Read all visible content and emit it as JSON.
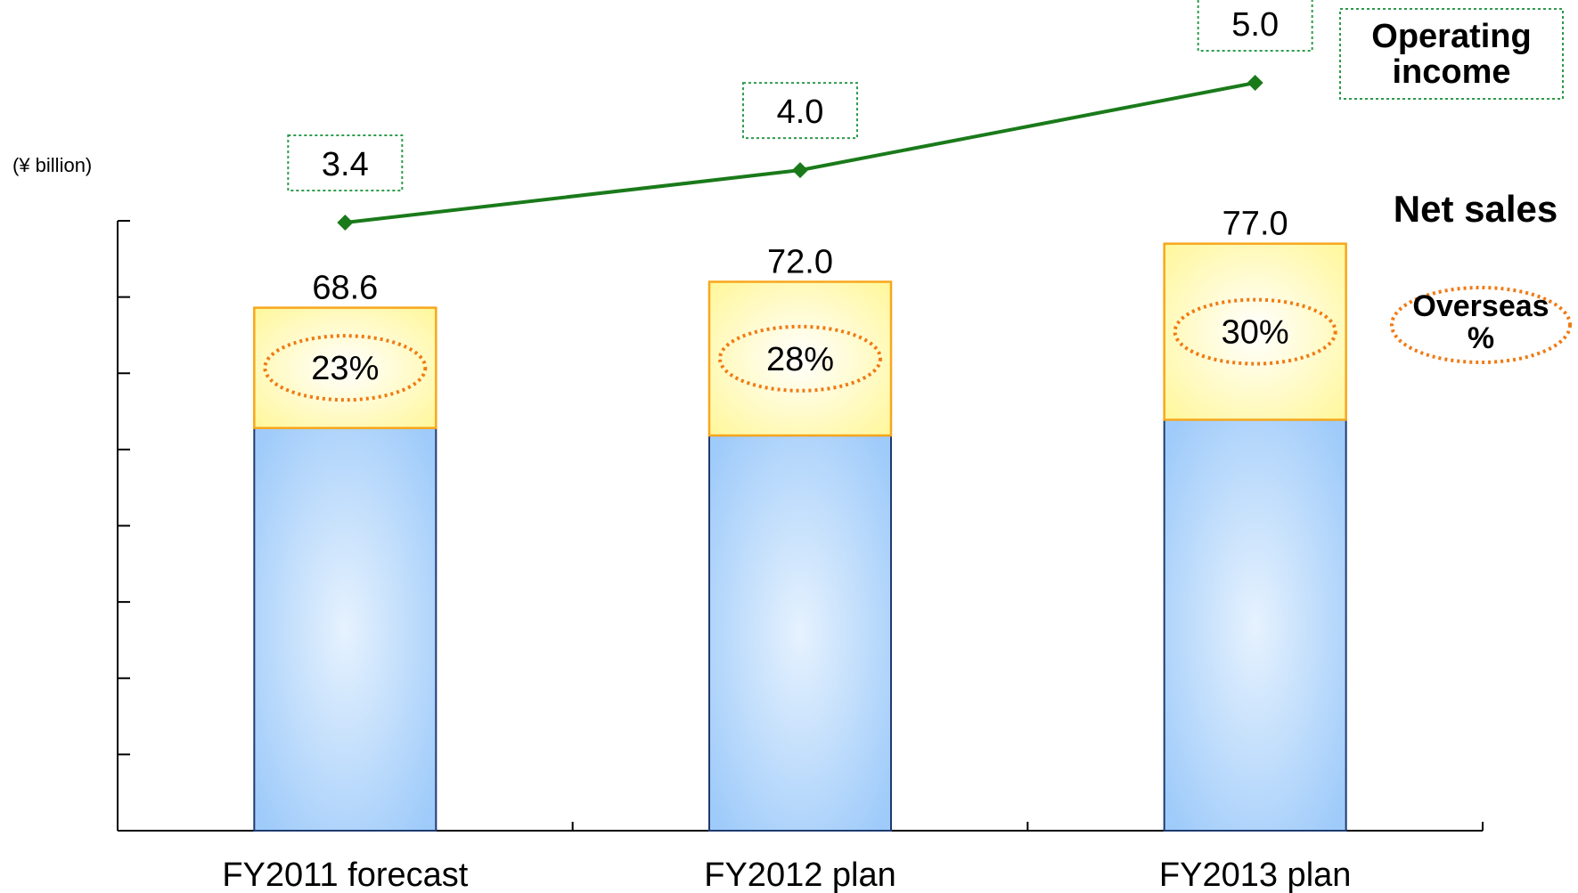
{
  "chart_data": {
    "type": "bar",
    "unit_label": "(¥ billion)",
    "categories": [
      "FY2011 forecast",
      "FY2012 plan",
      "FY2013 plan"
    ],
    "series": [
      {
        "name": "Net sales",
        "values": [
          68.6,
          72.0,
          77.0
        ],
        "value_labels": [
          "68.6",
          "72.0",
          "77.0"
        ],
        "overseas_pct": [
          23,
          28,
          30
        ],
        "overseas_labels": [
          "23%",
          "28%",
          "30%"
        ]
      },
      {
        "name": "Operating income",
        "type": "line",
        "values": [
          3.4,
          4.0,
          5.0
        ],
        "value_labels": [
          "3.4",
          "4.0",
          "5.0"
        ]
      }
    ],
    "legend": {
      "operating_income": "Operating income",
      "net_sales": "Net sales",
      "overseas": "Overseas %"
    },
    "ylim": [
      0,
      80
    ],
    "y_ticks": [
      0,
      10,
      20,
      30,
      40,
      50,
      60,
      70,
      80
    ],
    "y_tick_labels_shown": false,
    "colors": {
      "domestic_bar": "#9fcbfa",
      "domestic_bar_center": "#e6f2fe",
      "overseas_bar": "#fffaa0",
      "overseas_bar_border": "#f7a71c",
      "domestic_bar_border": "#1f3a70",
      "line": "#1a7a1a",
      "label_box_border": "#2e9b4a",
      "ellipse_border": "#f07a14"
    }
  }
}
